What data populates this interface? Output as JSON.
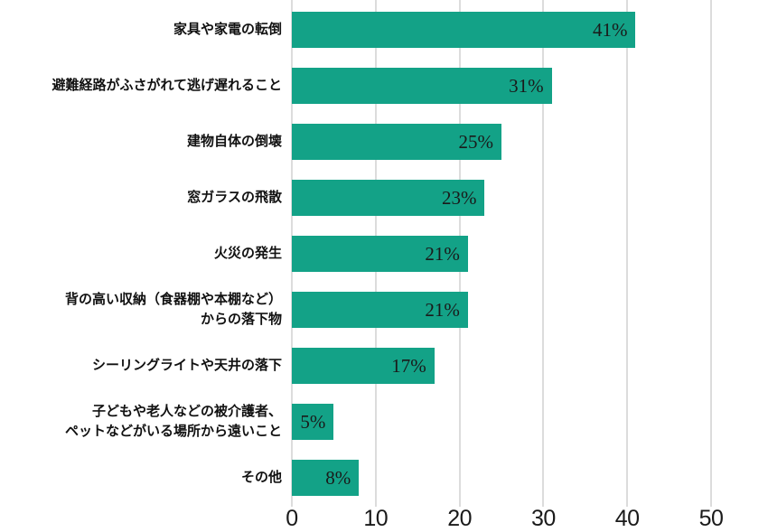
{
  "chart_data": {
    "type": "bar",
    "orientation": "horizontal",
    "title": "",
    "xlabel": "",
    "ylabel": "",
    "xlim": [
      0,
      50
    ],
    "x_ticks": [
      0,
      10,
      20,
      30,
      40,
      50
    ],
    "grid": true,
    "legend": false,
    "categories": [
      "家具や家電の転倒",
      "避難経路がふさがれて逃げ遅れること",
      "建物自体の倒壊",
      "窓ガラスの飛散",
      "火災の発生",
      "背の高い収納（食器棚や本棚など）\nからの落下物",
      "シーリングライトや天井の落下",
      "子どもや老人などの被介護者、\nペットなどがいる場所から遠いこと",
      "その他"
    ],
    "values": [
      41,
      31,
      25,
      23,
      21,
      21,
      17,
      5,
      8
    ],
    "value_labels": [
      "41%",
      "31%",
      "25%",
      "23%",
      "21%",
      "21%",
      "17%",
      "5%",
      "8%"
    ],
    "colors": {
      "bar": "#13A287",
      "grid": "#dcdcdc",
      "text": "#1a1a1a",
      "background": "#ffffff"
    }
  }
}
